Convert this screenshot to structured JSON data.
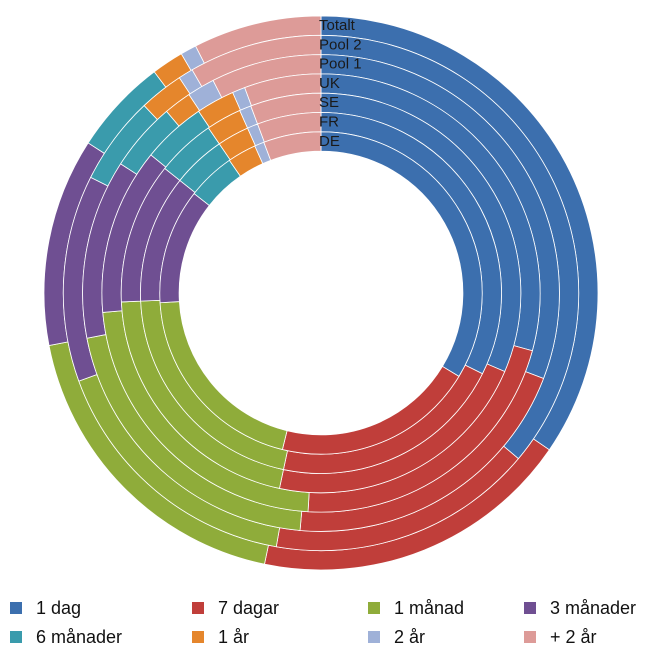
{
  "chart_data": {
    "type": "nested-donut",
    "rings": [
      {
        "label": "Totalt",
        "values": [
          0.37,
          0.2,
          0.2,
          0.13,
          0.06,
          0.02,
          0.01,
          0.08
        ]
      },
      {
        "label": "Pool 2",
        "values": [
          0.39,
          0.18,
          0.18,
          0.14,
          0.06,
          0.03,
          0.01,
          0.09
        ]
      },
      {
        "label": "Pool 1",
        "values": [
          0.33,
          0.22,
          0.22,
          0.13,
          0.05,
          0.02,
          0.02,
          0.08
        ]
      },
      {
        "label": "UK",
        "values": [
          0.31,
          0.23,
          0.24,
          0.13,
          0.05,
          0.03,
          0.01,
          0.06
        ]
      },
      {
        "label": "SE",
        "values": [
          0.33,
          0.23,
          0.22,
          0.12,
          0.05,
          0.03,
          0.01,
          0.06
        ]
      },
      {
        "label": "FR",
        "values": [
          0.34,
          0.22,
          0.22,
          0.12,
          0.05,
          0.03,
          0.01,
          0.06
        ]
      },
      {
        "label": "DE",
        "values": [
          0.35,
          0.21,
          0.21,
          0.12,
          0.05,
          0.03,
          0.01,
          0.06
        ]
      }
    ],
    "categories": [
      "1 dag",
      "7 dagar",
      "1 månad",
      "3 månader",
      "6 månader",
      "1 år",
      "2 år",
      "+ 2 år"
    ],
    "colors": [
      "#3c6fae",
      "#c03e3a",
      "#8fac3a",
      "#6f4f92",
      "#3a9bac",
      "#e5862c",
      "#9fb1d8",
      "#dd9b98"
    ]
  },
  "legend": [
    {
      "label": "1 dag",
      "color": "#3c6fae"
    },
    {
      "label": "7 dagar",
      "color": "#c03e3a"
    },
    {
      "label": "1 månad",
      "color": "#8fac3a"
    },
    {
      "label": "3 månader",
      "color": "#6f4f92"
    },
    {
      "label": "6 månader",
      "color": "#3a9bac"
    },
    {
      "label": "1 år",
      "color": "#e5862c"
    },
    {
      "label": "2 år",
      "color": "#9fb1d8"
    },
    {
      "label": "+ 2 år",
      "color": "#dd9b98"
    }
  ]
}
